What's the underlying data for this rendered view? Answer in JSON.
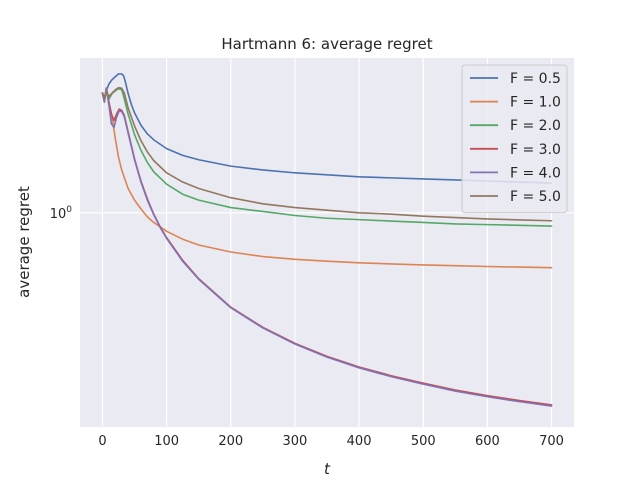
{
  "chart_data": {
    "type": "line",
    "title": "Hartmann 6: average regret",
    "xlabel": "t",
    "ylabel": "average regret",
    "xlim": [
      -35,
      735
    ],
    "ylim": [
      0.2,
      3.2
    ],
    "yscale": "log",
    "xticks": [
      0,
      100,
      200,
      300,
      400,
      500,
      600,
      700
    ],
    "yticks": [
      {
        "value": 1.0,
        "label": "10",
        "exponent": "0"
      }
    ],
    "grid": true,
    "legend_position": "top-right",
    "series": [
      {
        "name": "F = 0.5",
        "color": "#4c72b0",
        "x": [
          0,
          3,
          6,
          10,
          15,
          20,
          25,
          30,
          33,
          36,
          40,
          45,
          50,
          60,
          70,
          80,
          100,
          125,
          150,
          200,
          250,
          300,
          350,
          400,
          450,
          500,
          550,
          600,
          650,
          700
        ],
        "y": [
          2.46,
          2.38,
          2.5,
          2.63,
          2.72,
          2.78,
          2.84,
          2.84,
          2.8,
          2.66,
          2.45,
          2.26,
          2.12,
          1.93,
          1.81,
          1.73,
          1.62,
          1.54,
          1.49,
          1.42,
          1.38,
          1.35,
          1.33,
          1.31,
          1.3,
          1.29,
          1.28,
          1.27,
          1.26,
          1.25
        ]
      },
      {
        "name": "F = 1.0",
        "color": "#dd8452",
        "x": [
          0,
          3,
          6,
          10,
          15,
          20,
          25,
          30,
          40,
          50,
          60,
          70,
          80,
          90,
          100,
          125,
          150,
          200,
          250,
          300,
          350,
          400,
          450,
          500,
          550,
          600,
          650,
          700
        ],
        "y": [
          2.46,
          2.3,
          2.55,
          2.3,
          2.05,
          1.75,
          1.52,
          1.38,
          1.2,
          1.1,
          1.03,
          0.97,
          0.93,
          0.9,
          0.87,
          0.82,
          0.785,
          0.745,
          0.72,
          0.705,
          0.695,
          0.687,
          0.681,
          0.676,
          0.672,
          0.668,
          0.665,
          0.662
        ]
      },
      {
        "name": "F = 2.0",
        "color": "#55a868",
        "x": [
          0,
          3,
          6,
          10,
          15,
          20,
          25,
          30,
          33,
          40,
          50,
          60,
          70,
          80,
          100,
          125,
          150,
          200,
          250,
          300,
          350,
          400,
          450,
          500,
          550,
          600,
          650,
          700
        ],
        "y": [
          2.46,
          2.3,
          2.55,
          2.35,
          2.45,
          2.5,
          2.54,
          2.52,
          2.4,
          2.1,
          1.8,
          1.6,
          1.46,
          1.36,
          1.24,
          1.15,
          1.1,
          1.04,
          1.01,
          0.98,
          0.96,
          0.95,
          0.94,
          0.93,
          0.92,
          0.915,
          0.91,
          0.905
        ]
      },
      {
        "name": "F = 3.0",
        "color": "#c44e52",
        "x": [
          0,
          3,
          6,
          10,
          14,
          18,
          22,
          26,
          30,
          34,
          40,
          50,
          60,
          70,
          80,
          90,
          100,
          125,
          150,
          200,
          250,
          300,
          350,
          400,
          450,
          500,
          550,
          600,
          650,
          700
        ],
        "y": [
          2.46,
          2.3,
          2.55,
          2.3,
          2.1,
          2.0,
          2.1,
          2.18,
          2.16,
          2.08,
          1.84,
          1.5,
          1.27,
          1.11,
          0.99,
          0.9,
          0.83,
          0.7,
          0.61,
          0.492,
          0.423,
          0.375,
          0.34,
          0.314,
          0.294,
          0.278,
          0.264,
          0.253,
          0.244,
          0.236
        ]
      },
      {
        "name": "F = 4.0",
        "color": "#8172b3",
        "x": [
          0,
          3,
          6,
          10,
          14,
          18,
          22,
          26,
          30,
          34,
          40,
          50,
          60,
          70,
          80,
          90,
          100,
          125,
          150,
          200,
          250,
          300,
          350,
          400,
          450,
          500,
          550,
          600,
          650,
          700
        ],
        "y": [
          2.46,
          2.3,
          2.55,
          2.25,
          1.95,
          1.9,
          2.05,
          2.15,
          2.14,
          2.06,
          1.82,
          1.49,
          1.26,
          1.1,
          0.985,
          0.895,
          0.825,
          0.695,
          0.607,
          0.49,
          0.421,
          0.373,
          0.338,
          0.312,
          0.292,
          0.276,
          0.262,
          0.251,
          0.242,
          0.234
        ]
      },
      {
        "name": "F = 5.0",
        "color": "#937860",
        "x": [
          0,
          3,
          6,
          10,
          15,
          20,
          25,
          30,
          34,
          40,
          50,
          60,
          70,
          80,
          100,
          125,
          150,
          200,
          250,
          300,
          350,
          400,
          450,
          500,
          550,
          600,
          650,
          700
        ],
        "y": [
          2.46,
          2.36,
          2.48,
          2.4,
          2.46,
          2.52,
          2.56,
          2.55,
          2.46,
          2.2,
          1.92,
          1.72,
          1.58,
          1.48,
          1.35,
          1.26,
          1.2,
          1.12,
          1.07,
          1.04,
          1.02,
          1.0,
          0.99,
          0.975,
          0.965,
          0.955,
          0.948,
          0.942
        ]
      }
    ]
  }
}
